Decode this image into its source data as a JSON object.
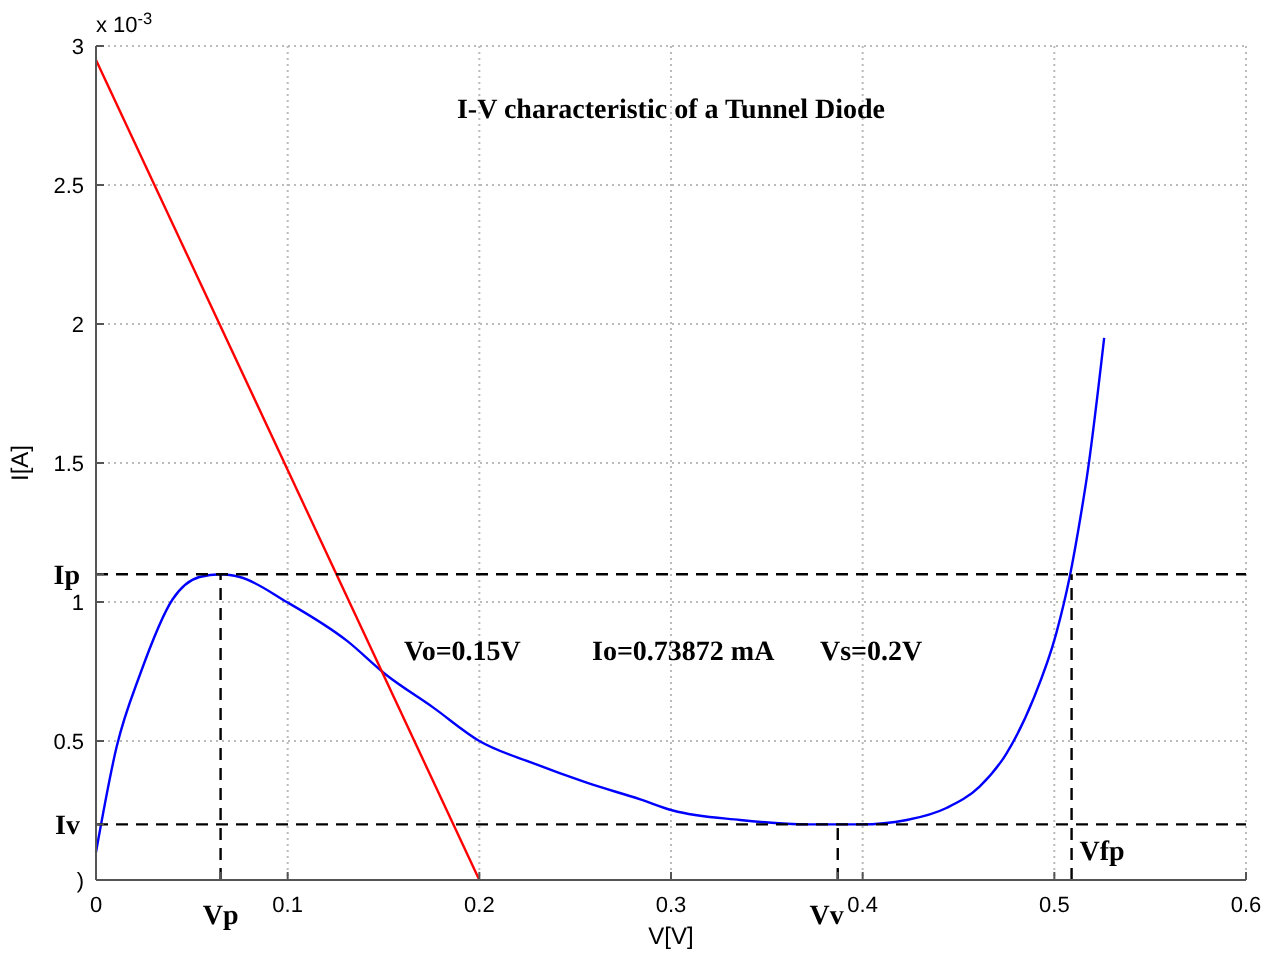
{
  "chart_data": {
    "type": "line",
    "title": "I-V characteristic of a Tunnel Diode",
    "xlabel": "V[V]",
    "ylabel": "I[A]",
    "xlim": [
      0,
      0.6
    ],
    "ylim": [
      0,
      3
    ],
    "xticks": [
      0,
      {
        "value": 0.065,
        "label": "Vp"
      },
      0.1,
      0.2,
      0.3,
      {
        "value": 0.387,
        "label": "Vv"
      },
      0.4,
      0.5,
      0.6
    ],
    "yticks": [
      {
        "value": 0,
        "label": ")"
      },
      {
        "value": 0.2,
        "label": "Iv"
      },
      0.5,
      1,
      {
        "value": 1.1,
        "label": "Ip"
      },
      1.5,
      2,
      2.5,
      3
    ],
    "grid": true,
    "line_style": "solid",
    "series": [
      {
        "color": "#0000ff",
        "x": [
          0,
          0.0108,
          0.023,
          0.04,
          0.054,
          0.065,
          0.075,
          0.0995,
          0.131,
          0.151,
          0.176,
          0.2,
          0.228,
          0.256,
          0.284,
          0.301,
          0.336,
          0.371,
          0.399,
          0.423,
          0.444,
          0.461,
          0.475,
          0.489,
          0.501,
          0.508,
          0.514,
          0.517,
          0.526
        ],
        "values": [
          0.1,
          0.48,
          0.74,
          1.01,
          1.09,
          1.1,
          1.09,
          1.0,
          0.86,
          0.74,
          0.62,
          0.5,
          0.42,
          0.35,
          0.29,
          0.25,
          0.216,
          0.2,
          0.2,
          0.216,
          0.26,
          0.336,
          0.455,
          0.65,
          0.887,
          1.09,
          1.32,
          1.45,
          1.95
        ]
      },
      {
        "color": "#ff0000",
        "x": [
          0,
          0.2
        ],
        "values": [
          2.95,
          0
        ]
      },
      {
        "color": "#000000",
        "line_style": "dashed",
        "x": [
          0.065,
          0.065
        ],
        "values": [
          0,
          1.1
        ]
      },
      {
        "color": "#000000",
        "line_style": "dashed",
        "x": [
          0.387,
          0.387
        ],
        "values": [
          0,
          0.2
        ]
      },
      {
        "color": "#000000",
        "line_style": "dashed",
        "x": [
          0.509,
          0.509
        ],
        "values": [
          0,
          1.1
        ]
      },
      {
        "color": "#000000",
        "line_style": "dashed",
        "x": [
          0,
          0.6
        ],
        "values": [
          1.1,
          1.1
        ]
      },
      {
        "color": "#000000",
        "line_style": "dashed",
        "x": [
          0,
          0.6
        ],
        "values": [
          0.2,
          0.2
        ]
      }
    ],
    "annotations": [
      "x 10$^{-3}$",
      "Vo=0.15V",
      "Io=0.73872 mA",
      "Vs=0.2V",
      {
        "text": "Vfp",
        "x": 0.509,
        "y": 0
      }
    ]
  }
}
